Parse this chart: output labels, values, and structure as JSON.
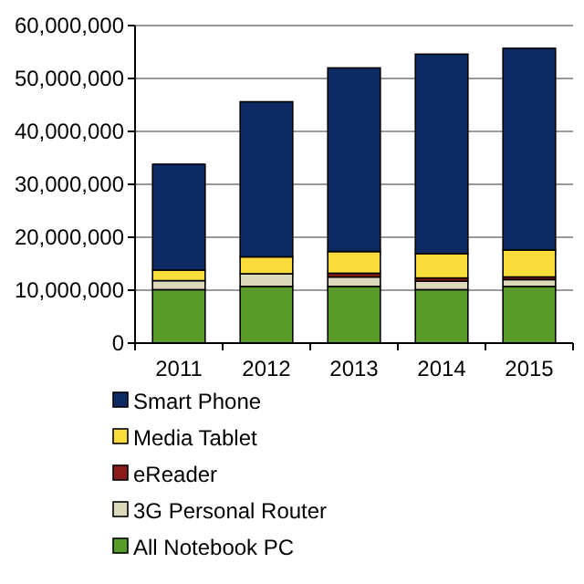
{
  "chart_data": {
    "type": "bar",
    "stacked": true,
    "categories": [
      "2011",
      "2012",
      "2013",
      "2014",
      "2015"
    ],
    "series": [
      {
        "name": "All Notebook PC",
        "color": "#5a9a2a",
        "values": [
          10100000.0,
          10700000.0,
          10700000.0,
          10100000.0,
          10700000.0
        ]
      },
      {
        "name": "3G Personal Router",
        "color": "#ddd9bd",
        "values": [
          1700000.0,
          2400000.0,
          1800000.0,
          1600000.0,
          1300000.0
        ]
      },
      {
        "name": "eReader",
        "color": "#8b1a1a",
        "values": [
          null,
          null,
          700000.0,
          600000.0,
          500000.0
        ]
      },
      {
        "name": "Media Tablet",
        "color": "#f7dc3c",
        "values": [
          2000000.0,
          3200000.0,
          4100000.0,
          4600000.0,
          5100000.0
        ]
      },
      {
        "name": "Smart Phone",
        "color": "#0d2a63",
        "values": [
          20000000.0,
          29300000.0,
          34700000.0,
          37700000.0,
          38100000.0
        ]
      }
    ],
    "ylim": [
      0,
      60000000
    ],
    "yticks": [
      {
        "value": 0,
        "label": "0"
      },
      {
        "value": 10000000,
        "label": "10,000,000"
      },
      {
        "value": 20000000,
        "label": "20,000,000"
      },
      {
        "value": 30000000,
        "label": "30,000,000"
      },
      {
        "value": 40000000,
        "label": "40,000,000"
      },
      {
        "value": 50000000,
        "label": "50,000,000"
      },
      {
        "value": 60000000,
        "label": "60,000,000"
      }
    ],
    "grid": "y",
    "legend": "bottom"
  }
}
